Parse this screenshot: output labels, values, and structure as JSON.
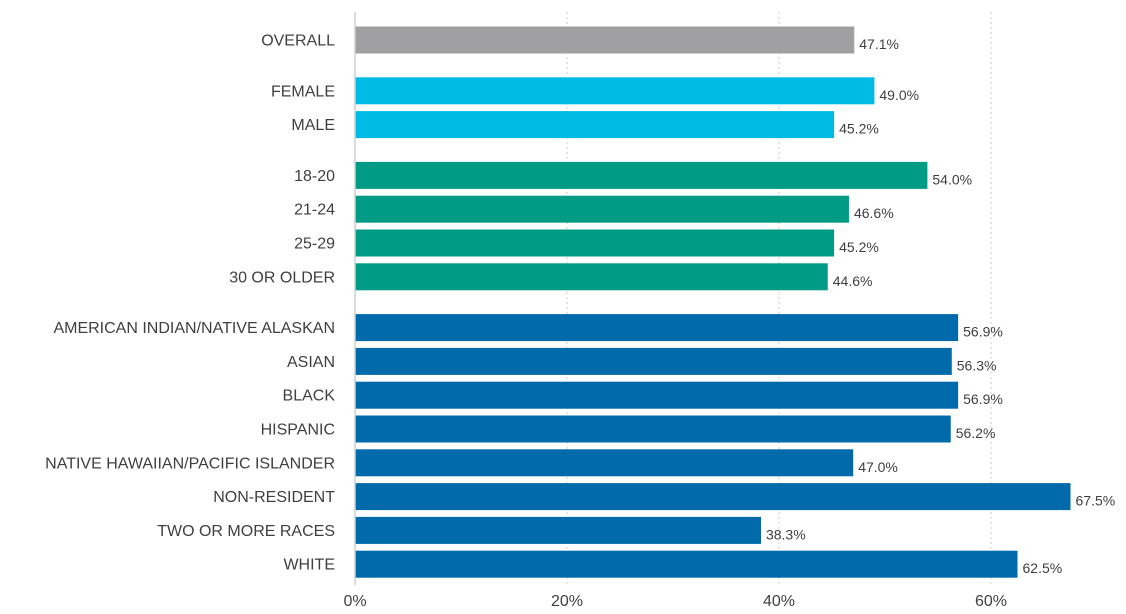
{
  "chart_data": {
    "type": "bar",
    "orientation": "horizontal",
    "groups": [
      {
        "color": "#a0a0a2",
        "items": [
          {
            "label": "OVERALL",
            "value": 47.1,
            "value_label": "47.1%"
          }
        ]
      },
      {
        "color": "#00bce4",
        "items": [
          {
            "label": "FEMALE",
            "value": 49.0,
            "value_label": "49.0%"
          },
          {
            "label": "MALE",
            "value": 45.2,
            "value_label": "45.2%"
          }
        ]
      },
      {
        "color": "#009b85",
        "items": [
          {
            "label": "18-20",
            "value": 54.0,
            "value_label": "54.0%"
          },
          {
            "label": "21-24",
            "value": 46.6,
            "value_label": "46.6%"
          },
          {
            "label": "25-29",
            "value": 45.2,
            "value_label": "45.2%"
          },
          {
            "label": "30 OR OLDER",
            "value": 44.6,
            "value_label": "44.6%"
          }
        ]
      },
      {
        "color": "#006aaa",
        "items": [
          {
            "label": "AMERICAN INDIAN/NATIVE ALASKAN",
            "value": 56.9,
            "value_label": "56.9%"
          },
          {
            "label": "ASIAN",
            "value": 56.3,
            "value_label": "56.3%"
          },
          {
            "label": "BLACK",
            "value": 56.9,
            "value_label": "56.9%"
          },
          {
            "label": "HISPANIC",
            "value": 56.2,
            "value_label": "56.2%"
          },
          {
            "label": "NATIVE HAWAIIAN/PACIFIC ISLANDER",
            "value": 47.0,
            "value_label": "47.0%"
          },
          {
            "label": "NON-RESIDENT",
            "value": 67.5,
            "value_label": "67.5%"
          },
          {
            "label": "TWO OR MORE RACES",
            "value": 38.3,
            "value_label": "38.3%"
          },
          {
            "label": "WHITE",
            "value": 62.5,
            "value_label": "62.5%"
          }
        ]
      }
    ],
    "xlim": [
      0,
      70
    ],
    "x_ticks": [
      0,
      20,
      40,
      60
    ],
    "x_tick_labels": [
      "0%",
      "20%",
      "40%",
      "60%"
    ],
    "grid": true,
    "title": "",
    "xlabel": "",
    "ylabel": ""
  }
}
